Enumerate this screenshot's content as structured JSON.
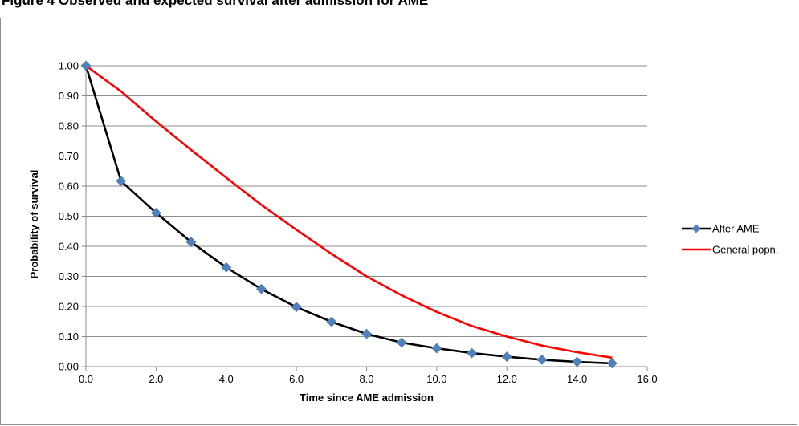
{
  "caption": "Figure 4  Observed and expected survival after admission for AME",
  "chart_data": {
    "type": "line",
    "title": "",
    "xlabel": "Time since AME admission",
    "ylabel": "Probability of survival",
    "xlim": [
      0,
      16
    ],
    "ylim": [
      0,
      1
    ],
    "x_ticks": [
      "0.0",
      "2.0",
      "4.0",
      "6.0",
      "8.0",
      "10.0",
      "12.0",
      "14.0",
      "16.0"
    ],
    "y_ticks": [
      "0.00",
      "0.10",
      "0.20",
      "0.30",
      "0.40",
      "0.50",
      "0.60",
      "0.70",
      "0.80",
      "0.90",
      "1.00"
    ],
    "grid": "horizontal",
    "legend_position": "right",
    "series": [
      {
        "name": "After AME",
        "color": "#000000",
        "marker": "diamond",
        "marker_color": "#4f81bd",
        "x": [
          0,
          1,
          2,
          3,
          4,
          5,
          6,
          7,
          8,
          9,
          10,
          11,
          12,
          13,
          14,
          15
        ],
        "values": [
          1.0,
          0.617,
          0.511,
          0.414,
          0.33,
          0.258,
          0.198,
          0.149,
          0.109,
          0.08,
          0.061,
          0.045,
          0.033,
          0.023,
          0.016,
          0.011
        ]
      },
      {
        "name": "General popn.",
        "color": "#ff0000",
        "marker": "none",
        "x": [
          0,
          1,
          2,
          3,
          4,
          5,
          6,
          7,
          8,
          9,
          10,
          11,
          12,
          13,
          14,
          15
        ],
        "values": [
          1.0,
          0.915,
          0.815,
          0.72,
          0.628,
          0.538,
          0.455,
          0.375,
          0.3,
          0.237,
          0.182,
          0.135,
          0.1,
          0.07,
          0.048,
          0.03
        ]
      }
    ]
  }
}
